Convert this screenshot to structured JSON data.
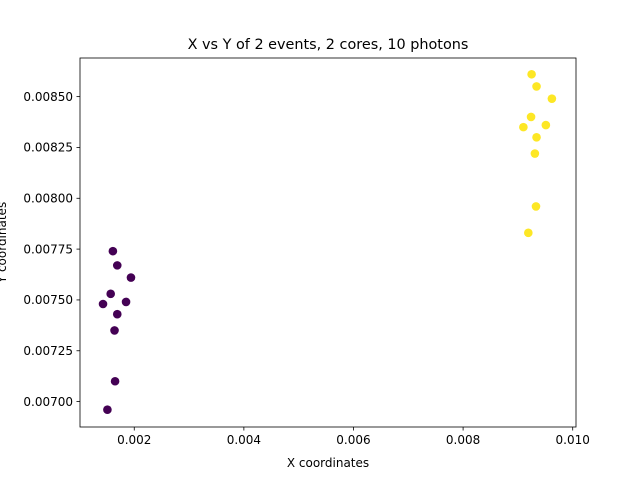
{
  "chart_data": {
    "type": "scatter",
    "title": "X vs Y of 2 events, 2 cores, 10 photons",
    "xlabel": "X coordinates",
    "ylabel": "Y coordinates",
    "xlim": [
      0.00101,
      0.01006
    ],
    "ylim": [
      0.006875,
      0.00869
    ],
    "xticks": [
      {
        "value": 0.002,
        "label": "0.002"
      },
      {
        "value": 0.004,
        "label": "0.004"
      },
      {
        "value": 0.006,
        "label": "0.006"
      },
      {
        "value": 0.008,
        "label": "0.008"
      },
      {
        "value": 0.01,
        "label": "0.010"
      }
    ],
    "yticks": [
      {
        "value": 0.007,
        "label": "0.00700"
      },
      {
        "value": 0.00725,
        "label": "0.00725"
      },
      {
        "value": 0.0075,
        "label": "0.00750"
      },
      {
        "value": 0.00775,
        "label": "0.00775"
      },
      {
        "value": 0.008,
        "label": "0.00800"
      },
      {
        "value": 0.00825,
        "label": "0.00825"
      },
      {
        "value": 0.0085,
        "label": "0.00850"
      }
    ],
    "grid": false,
    "legend": "none",
    "series": [
      {
        "color": "#440154",
        "x": [
          0.00161,
          0.00169,
          0.00194,
          0.00157,
          0.00143,
          0.00185,
          0.00169,
          0.00164,
          0.00165,
          0.00151
        ],
        "y": [
          0.00774,
          0.00767,
          0.00761,
          0.00753,
          0.00748,
          0.00749,
          0.00743,
          0.00735,
          0.0071,
          0.00696
        ]
      },
      {
        "color": "#fde725",
        "x": [
          0.00925,
          0.00934,
          0.00962,
          0.00924,
          0.00951,
          0.0091,
          0.00934,
          0.00931,
          0.00933,
          0.00919
        ],
        "y": [
          0.00861,
          0.00855,
          0.00849,
          0.0084,
          0.00836,
          0.00835,
          0.0083,
          0.00822,
          0.00796,
          0.00783
        ]
      }
    ]
  }
}
